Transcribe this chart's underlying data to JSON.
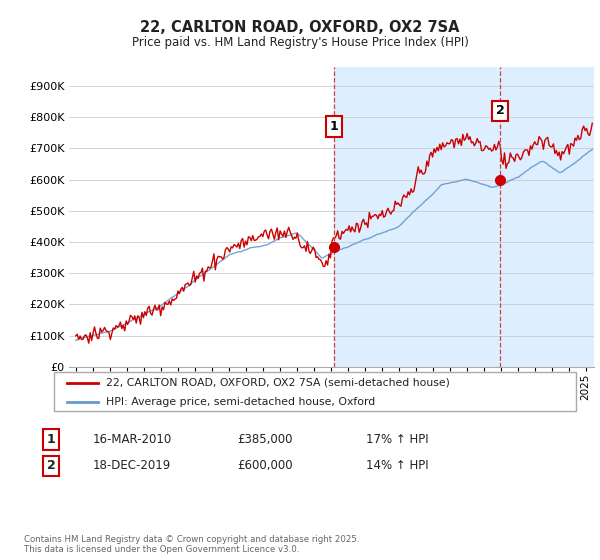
{
  "title": "22, CARLTON ROAD, OXFORD, OX2 7SA",
  "subtitle": "Price paid vs. HM Land Registry's House Price Index (HPI)",
  "ylabel_ticks": [
    "£0",
    "£100K",
    "£200K",
    "£300K",
    "£400K",
    "£500K",
    "£600K",
    "£700K",
    "£800K",
    "£900K"
  ],
  "ytick_values": [
    0,
    100000,
    200000,
    300000,
    400000,
    500000,
    600000,
    700000,
    800000,
    900000
  ],
  "ylim": [
    0,
    960000
  ],
  "xlim_start": 1994.6,
  "xlim_end": 2025.5,
  "hpi_color": "#6699cc",
  "price_color": "#cc0000",
  "marker1_x": 2010.2,
  "marker2_x": 2019.97,
  "marker1_y": 385000,
  "marker2_y": 600000,
  "annotation1": {
    "label": "1",
    "date": "16-MAR-2010",
    "price": "£385,000",
    "hpi": "17% ↑ HPI"
  },
  "annotation2": {
    "label": "2",
    "date": "18-DEC-2019",
    "price": "£600,000",
    "hpi": "14% ↑ HPI"
  },
  "legend1": "22, CARLTON ROAD, OXFORD, OX2 7SA (semi-detached house)",
  "legend2": "HPI: Average price, semi-detached house, Oxford",
  "footnote": "Contains HM Land Registry data © Crown copyright and database right 2025.\nThis data is licensed under the Open Government Licence v3.0.",
  "bg_color": "#ffffff",
  "plot_bg": "#ffffff",
  "shaded_region_color": "#ddeeff"
}
